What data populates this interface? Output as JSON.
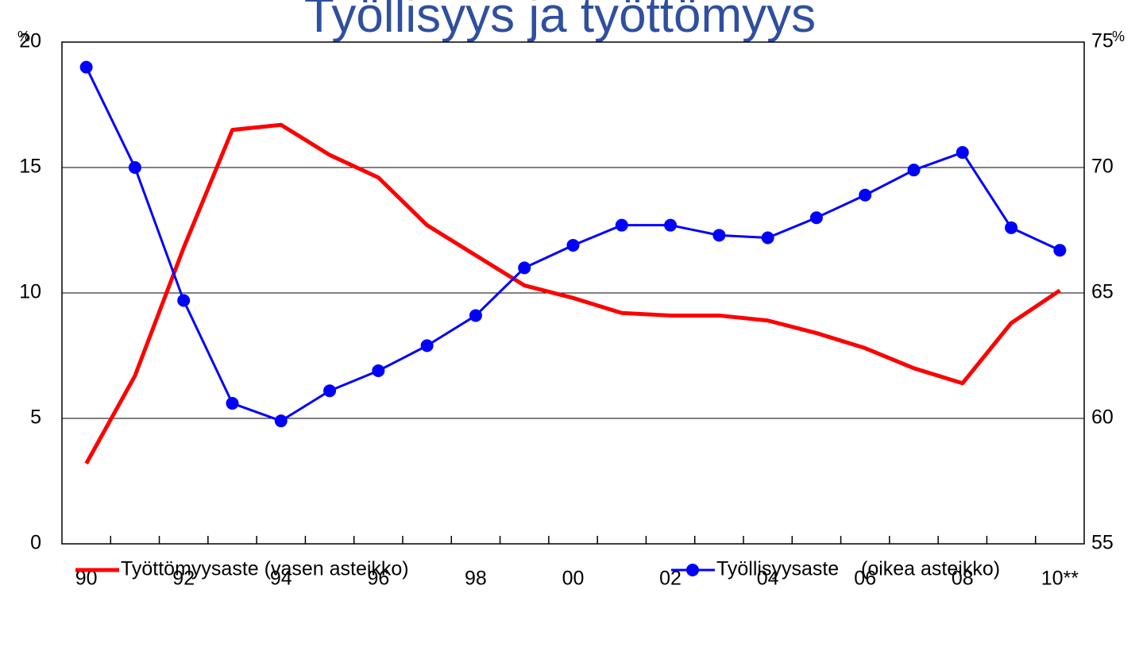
{
  "chart_data": {
    "type": "line",
    "title": "Työllisyys ja työttömyys",
    "ylabel": "%",
    "y2label": "%",
    "categories": [
      "90",
      null,
      "92",
      null,
      "94",
      null,
      "96",
      null,
      "98",
      null,
      "00",
      null,
      "02",
      null,
      "04",
      null,
      "06",
      null,
      "08",
      null,
      "10**"
    ],
    "series": [
      {
        "name": "Työttömyysaste (vasen asteikko)",
        "color": "#ff0000",
        "axis": "y",
        "values": [
          3.2,
          6.7,
          11.8,
          16.5,
          16.7,
          15.5,
          14.6,
          12.7,
          11.5,
          10.3,
          9.8,
          9.2,
          9.1,
          9.1,
          8.9,
          8.4,
          7.8,
          7.0,
          6.4,
          8.8,
          10.1
        ]
      },
      {
        "name": "Työllisyysaste    (oikea asteikko)",
        "color": "#0000ff",
        "axis": "y2",
        "marker": "circle",
        "values": [
          74.0,
          70.0,
          64.7,
          60.6,
          59.9,
          61.1,
          61.9,
          62.9,
          64.1,
          66.0,
          66.9,
          67.7,
          67.7,
          67.3,
          67.2,
          68.0,
          68.9,
          69.9,
          70.6,
          67.6,
          66.7
        ]
      }
    ],
    "ylim": [
      0,
      20
    ],
    "yticks": [
      0,
      5,
      10,
      15,
      20
    ],
    "y2lim": [
      55,
      75
    ],
    "y2ticks": [
      55,
      60,
      65,
      70,
      75
    ],
    "grid": true,
    "legend": "bottom"
  }
}
